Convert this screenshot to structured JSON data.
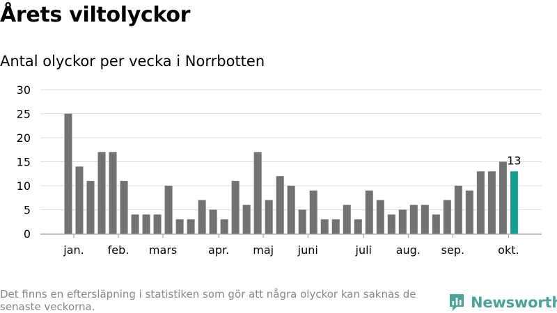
{
  "title": "Årets viltolyckor",
  "subtitle": "Antal olyckor per vecka i Norrbotten",
  "footnote": "Det finns en eftersläpning i statistiken som gör att några olyckor kan saknas de senaste veckorna.",
  "brand": {
    "name": "Newsworthy",
    "icon": "newsworthy-logo-icon"
  },
  "colors": {
    "bar": "#727174",
    "highlight": "#0ea295",
    "grid": "#dddddd",
    "axis": "#999999",
    "brand": "#4aa49a"
  },
  "chart_data": {
    "type": "bar",
    "title": "Antal olyckor per vecka i Norrbotten",
    "xlabel": "",
    "ylabel": "",
    "ylim": [
      0,
      30
    ],
    "yticks": [
      0,
      5,
      10,
      15,
      20,
      25,
      30
    ],
    "grid": true,
    "weeks": [
      1,
      2,
      3,
      4,
      5,
      6,
      7,
      8,
      9,
      10,
      11,
      12,
      13,
      14,
      15,
      16,
      17,
      18,
      19,
      20,
      21,
      22,
      23,
      24,
      25,
      26,
      27,
      28,
      29,
      30,
      31,
      32,
      33,
      34,
      35,
      36,
      37,
      38,
      39,
      40,
      41
    ],
    "values": [
      25,
      14,
      11,
      17,
      17,
      11,
      4,
      4,
      4,
      10,
      3,
      3,
      7,
      5,
      3,
      11,
      6,
      17,
      7,
      12,
      10,
      5,
      9,
      3,
      3,
      6,
      3,
      9,
      7,
      4,
      5,
      6,
      6,
      4,
      7,
      10,
      9,
      13,
      13,
      15,
      13
    ],
    "highlight_index": 40,
    "highlight_label": "13",
    "month_labels": [
      {
        "label": "jan.",
        "week": 1.5
      },
      {
        "label": "feb.",
        "week": 5.5
      },
      {
        "label": "mars",
        "week": 9.5
      },
      {
        "label": "apr.",
        "week": 14.5
      },
      {
        "label": "maj",
        "week": 18.5
      },
      {
        "label": "juni",
        "week": 22.5
      },
      {
        "label": "juli",
        "week": 27.5
      },
      {
        "label": "aug.",
        "week": 31.5
      },
      {
        "label": "sep.",
        "week": 35.5
      },
      {
        "label": "okt.",
        "week": 40.5
      }
    ]
  }
}
